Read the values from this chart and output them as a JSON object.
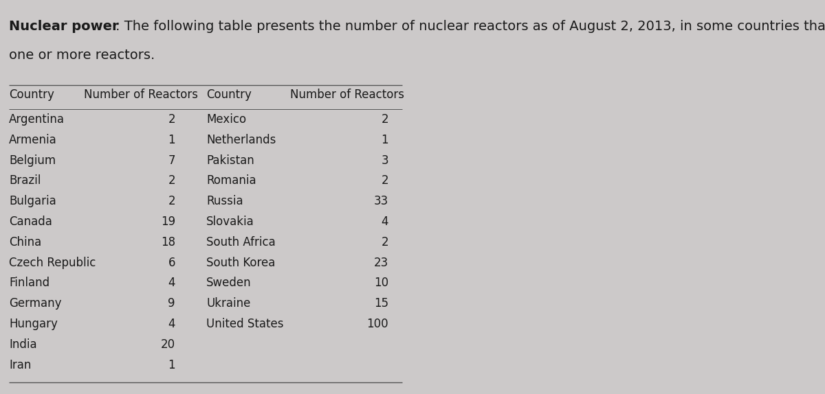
{
  "title_bold": "Nuclear power",
  "title_colon": ": The following table presents the number of nuclear reactors as of August 2, 2013, in some countries that had",
  "title_line2": "one or more reactors.",
  "col1_countries": [
    "Argentina",
    "Armenia",
    "Belgium",
    "Brazil",
    "Bulgaria",
    "Canada",
    "China",
    "Czech Republic",
    "Finland",
    "Germany",
    "Hungary",
    "India",
    "Iran"
  ],
  "col1_values": [
    "2",
    "1",
    "7",
    "2",
    "2",
    "19",
    "18",
    "6",
    "4",
    "9",
    "4",
    "20",
    "1"
  ],
  "col2_countries": [
    "Mexico",
    "Netherlands",
    "Pakistan",
    "Romania",
    "Russia",
    "Slovakia",
    "South Africa",
    "South Korea",
    "Sweden",
    "Ukraine",
    "United States",
    "",
    ""
  ],
  "col2_values": [
    "2",
    "1",
    "3",
    "2",
    "33",
    "4",
    "2",
    "23",
    "10",
    "15",
    "100",
    "",
    ""
  ],
  "header_country": "Country",
  "header_reactors": "Number of Reactors",
  "bg_color": "#ccc9c9",
  "text_color": "#1a1a1a",
  "title_fontsize": 14,
  "header_fontsize": 12,
  "cell_fontsize": 12,
  "fig_width": 12.0,
  "fig_height": 5.74
}
